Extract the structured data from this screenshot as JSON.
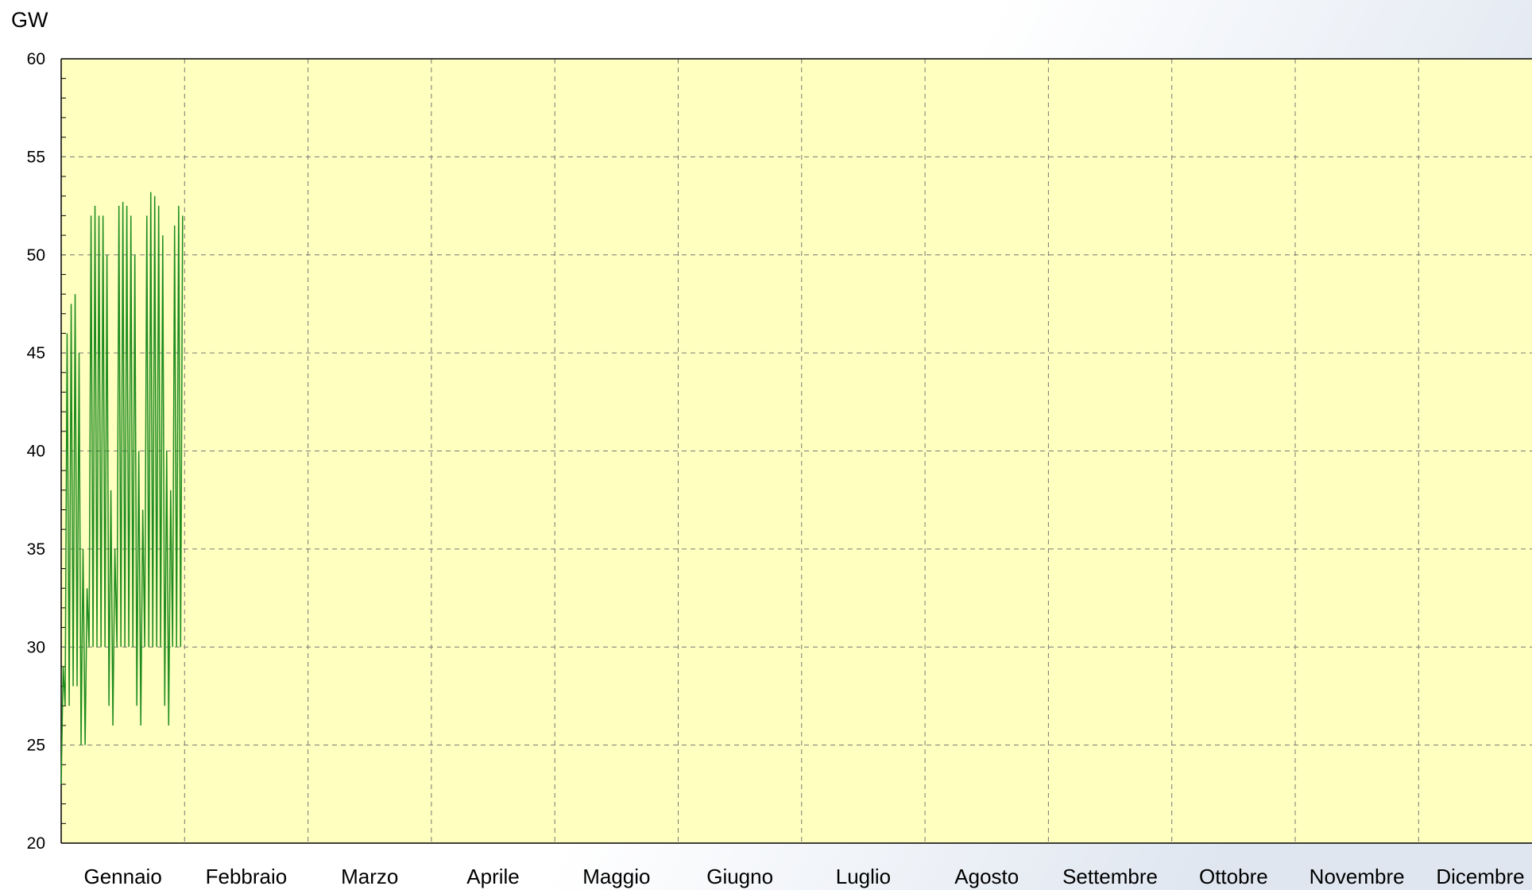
{
  "chart_data": {
    "type": "line",
    "y_label": "GW",
    "categories": [
      "Gennaio",
      "Febbraio",
      "Marzo",
      "Aprile",
      "Maggio",
      "Giugno",
      "Luglio",
      "Agosto",
      "Settembre",
      "Ottobre",
      "Novembre",
      "Dicembre"
    ],
    "xlim": [
      0,
      12
    ],
    "ylim": [
      20,
      60
    ],
    "yticks": [
      20,
      25,
      30,
      35,
      40,
      45,
      50,
      55,
      60
    ],
    "grid": true,
    "series": [
      {
        "color": "#1e8c1e",
        "x": [
          0,
          0.016,
          0.032,
          0.048,
          0.065,
          0.081,
          0.097,
          0.113,
          0.129,
          0.145,
          0.161,
          0.177,
          0.194,
          0.21,
          0.226,
          0.242,
          0.258,
          0.274,
          0.29,
          0.306,
          0.323,
          0.339,
          0.355,
          0.371,
          0.387,
          0.403,
          0.419,
          0.435,
          0.452,
          0.468,
          0.484,
          0.5,
          0.516,
          0.532,
          0.548,
          0.565,
          0.581,
          0.597,
          0.613,
          0.629,
          0.645,
          0.661,
          0.677,
          0.694,
          0.71,
          0.726,
          0.742,
          0.758,
          0.774,
          0.79,
          0.806,
          0.823,
          0.839,
          0.855,
          0.871,
          0.887,
          0.903,
          0.919,
          0.935,
          0.952,
          0.968,
          0.984
        ],
        "values": [
          23,
          29,
          27,
          46,
          27,
          47.5,
          28,
          48,
          28,
          45,
          25,
          35,
          25,
          33,
          30,
          52,
          30,
          52.5,
          30,
          52,
          30,
          52,
          30,
          50,
          27,
          38,
          26,
          35,
          30,
          52.5,
          30,
          52.7,
          30,
          52.5,
          30,
          52,
          30,
          50,
          27,
          40,
          26,
          37,
          30,
          52,
          30,
          53.2,
          30,
          53,
          30,
          52.5,
          30,
          51,
          27,
          40,
          26,
          38,
          30,
          51.5,
          30,
          52.5,
          30,
          52
        ]
      }
    ]
  }
}
